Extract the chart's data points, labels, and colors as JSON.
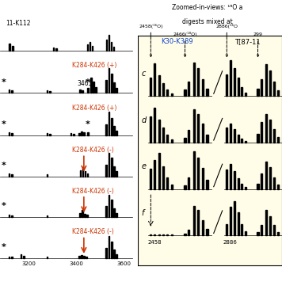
{
  "background_color": "#ffffff",
  "right_panel_bg": "#fffde8",
  "orange_color": "#cc3300",
  "left_rows": {
    "row_tops": [
      0.935,
      0.785,
      0.635,
      0.485,
      0.34,
      0.195
    ],
    "row_bottoms": [
      0.82,
      0.67,
      0.52,
      0.375,
      0.23,
      0.085
    ]
  },
  "right_rows": {
    "tops": [
      0.82,
      0.65,
      0.49,
      0.325
    ],
    "bottoms": [
      0.66,
      0.495,
      0.33,
      0.165
    ]
  },
  "xmin": 3080,
  "xmax": 3660,
  "right_header1": "Zoomed-in-views: ",
  "right_header2": "digests mixed at",
  "right_col1_label": "K30-K389",
  "right_col2_label": "T[87-11",
  "row_labels": [
    "c",
    "d",
    "e",
    "f"
  ],
  "x_ticks_vals": [
    3200,
    3400,
    3600
  ],
  "x_ticks_labels": [
    "3200",
    "3400",
    "3600"
  ],
  "x_bottom_left": "2458",
  "x_bottom_right": "2886"
}
